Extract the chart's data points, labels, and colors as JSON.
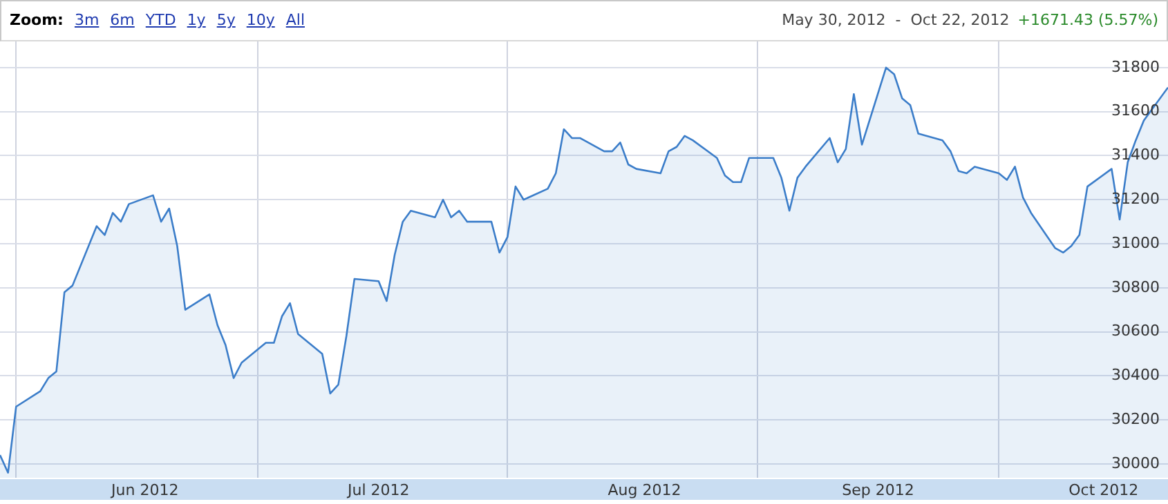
{
  "chart_data": {
    "type": "area",
    "grid": true,
    "annotations": [
      "Zoom:",
      "3m",
      "6m",
      "YTD",
      "1y",
      "5y",
      "10y",
      "All",
      "May 30, 2012  -  Oct 22, 2012",
      "+1671.43 (5.57%)"
    ],
    "x": [
      "2012-05-30",
      "2012-05-31",
      "2012-06-01",
      "2012-06-04",
      "2012-06-05",
      "2012-06-06",
      "2012-06-07",
      "2012-06-08",
      "2012-06-11",
      "2012-06-12",
      "2012-06-13",
      "2012-06-14",
      "2012-06-15",
      "2012-06-18",
      "2012-06-19",
      "2012-06-20",
      "2012-06-21",
      "2012-06-22",
      "2012-06-25",
      "2012-06-26",
      "2012-06-27",
      "2012-06-28",
      "2012-06-29",
      "2012-07-02",
      "2012-07-03",
      "2012-07-04",
      "2012-07-05",
      "2012-07-06",
      "2012-07-09",
      "2012-07-10",
      "2012-07-11",
      "2012-07-12",
      "2012-07-13",
      "2012-07-16",
      "2012-07-17",
      "2012-07-18",
      "2012-07-19",
      "2012-07-20",
      "2012-07-23",
      "2012-07-24",
      "2012-07-25",
      "2012-07-26",
      "2012-07-27",
      "2012-07-30",
      "2012-07-31",
      "2012-08-01",
      "2012-08-02",
      "2012-08-03",
      "2012-08-06",
      "2012-08-07",
      "2012-08-08",
      "2012-08-09",
      "2012-08-10",
      "2012-08-13",
      "2012-08-14",
      "2012-08-15",
      "2012-08-16",
      "2012-08-17",
      "2012-08-20",
      "2012-08-21",
      "2012-08-22",
      "2012-08-23",
      "2012-08-24",
      "2012-08-27",
      "2012-08-28",
      "2012-08-29",
      "2012-08-30",
      "2012-08-31",
      "2012-09-03",
      "2012-09-04",
      "2012-09-05",
      "2012-09-06",
      "2012-09-07",
      "2012-09-10",
      "2012-09-11",
      "2012-09-12",
      "2012-09-13",
      "2012-09-14",
      "2012-09-17",
      "2012-09-18",
      "2012-09-19",
      "2012-09-20",
      "2012-09-21",
      "2012-09-24",
      "2012-09-25",
      "2012-09-26",
      "2012-09-27",
      "2012-09-28",
      "2012-10-01",
      "2012-10-02",
      "2012-10-03",
      "2012-10-04",
      "2012-10-05",
      "2012-10-08",
      "2012-10-09",
      "2012-10-10",
      "2012-10-11",
      "2012-10-12",
      "2012-10-15",
      "2012-10-16",
      "2012-10-17",
      "2012-10-18",
      "2012-10-19",
      "2012-10-22"
    ],
    "series": [
      {
        "color": "#3b7dc9",
        "values": [
          30040,
          29960,
          30260,
          30330,
          30390,
          30420,
          30780,
          30810,
          31080,
          31040,
          31140,
          31100,
          31180,
          31220,
          31100,
          31160,
          30990,
          30700,
          30770,
          30630,
          30540,
          30390,
          30460,
          30550,
          30550,
          30670,
          30730,
          30590,
          30500,
          30320,
          30360,
          30580,
          30840,
          30830,
          30740,
          30950,
          31100,
          31150,
          31120,
          31200,
          31120,
          31150,
          31100,
          31100,
          30960,
          31030,
          31260,
          31200,
          31250,
          31320,
          31520,
          31480,
          31480,
          31420,
          31420,
          31460,
          31360,
          31340,
          31320,
          31420,
          31440,
          31490,
          31470,
          31390,
          31310,
          31280,
          31280,
          31390,
          31390,
          31300,
          31150,
          31300,
          31350,
          31480,
          31370,
          31430,
          31680,
          31450,
          31800,
          31770,
          31660,
          31630,
          31500,
          31470,
          31420,
          31330,
          31320,
          31350,
          31320,
          31290,
          31350,
          31210,
          31140,
          30980,
          30960,
          30990,
          31040,
          31260,
          31340,
          31110,
          31370,
          31470,
          31560,
          31710
        ]
      }
    ],
    "ylim": [
      29937,
      31919
    ],
    "yticks": [
      30000,
      30200,
      30400,
      30600,
      30800,
      31000,
      31200,
      31400,
      31600,
      31800
    ],
    "xlim": [
      "2012-05-30",
      "2012-10-22"
    ],
    "xticks": [
      {
        "value": "2012-06-01",
        "label": null
      },
      {
        "value": "2012-06-17",
        "label": "Jun 2012"
      },
      {
        "value": "2012-07-01",
        "label": null
      },
      {
        "value": "2012-07-16",
        "label": "Jul 2012"
      },
      {
        "value": "2012-08-01",
        "label": null
      },
      {
        "value": "2012-08-18",
        "label": "Aug 2012"
      },
      {
        "value": "2012-09-01",
        "label": null
      },
      {
        "value": "2012-09-16",
        "label": "Sep 2012"
      },
      {
        "value": "2012-10-01",
        "label": null
      },
      {
        "value": "2012-10-14",
        "label": "Oct 2012"
      }
    ]
  }
}
